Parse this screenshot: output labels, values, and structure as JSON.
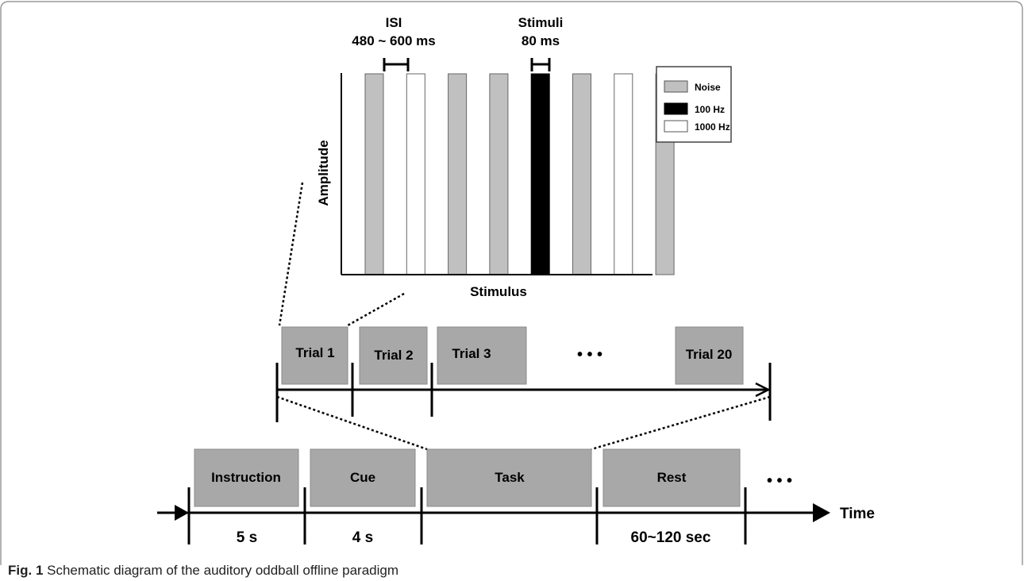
{
  "stimulus_plot": {
    "header_isi": [
      "ISI",
      "480 ~ 600 ms"
    ],
    "header_stimuli": [
      "Stimuli",
      "80 ms"
    ],
    "ylabel": "Amplitude",
    "xlabel": "Stimulus",
    "sequence": [
      "noise",
      "1000hz",
      "noise",
      "noise",
      "100hz",
      "noise",
      "1000hz",
      "noise"
    ],
    "legend": [
      {
        "key": "noise",
        "label": "Noise",
        "color": "#c0c0c0"
      },
      {
        "key": "100hz",
        "label": "100 Hz",
        "color": "#000000"
      },
      {
        "key": "1000hz",
        "label": "1000 Hz",
        "color": "#ffffff"
      }
    ]
  },
  "trials": {
    "items": [
      "Trial 1",
      "Trial 2",
      "Trial 3",
      "Trial 20"
    ],
    "ellipsis": "• • •"
  },
  "timeline": {
    "phases": [
      {
        "label": "Instruction",
        "duration": "5 s"
      },
      {
        "label": "Cue",
        "duration": "4 s"
      },
      {
        "label": "Task",
        "duration": ""
      },
      {
        "label": "Rest",
        "duration": "60~120 sec"
      }
    ],
    "ellipsis": "• • •",
    "axis_label": "Time"
  },
  "caption": {
    "label": "Fig. 1",
    "text": " Schematic diagram of the auditory oddball offline paradigm"
  },
  "colors": {
    "box_fill": "#a8a8a8",
    "noise": "#c0c0c0",
    "tone_100": "#000000",
    "tone_1000": "#ffffff",
    "border": "#777777"
  }
}
